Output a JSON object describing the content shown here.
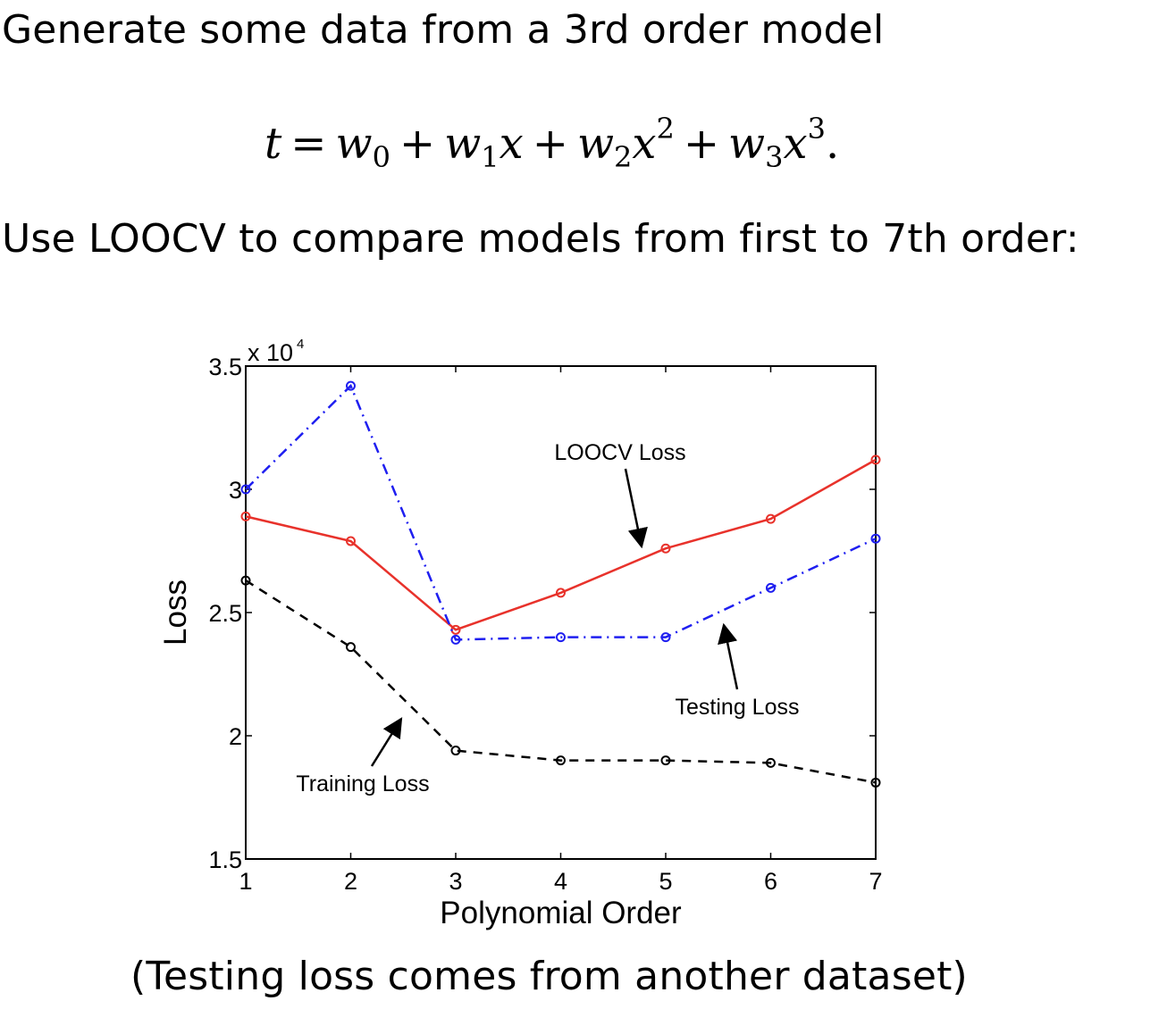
{
  "slide": {
    "intro": "Generate some data from a 3rd order model",
    "equation": {
      "lhs": "t",
      "eq": "=",
      "terms": [
        {
          "var": "w",
          "sub": "0",
          "x": "",
          "sup": ""
        },
        {
          "var": "w",
          "sub": "1",
          "x": "x",
          "sup": ""
        },
        {
          "var": "w",
          "sub": "2",
          "x": "x",
          "sup": "2"
        },
        {
          "var": "w",
          "sub": "3",
          "x": "x",
          "sup": "3"
        }
      ],
      "plus": "+",
      "end": "."
    },
    "instruction": "Use LOOCV to compare models from first to 7th order:",
    "caption": "(Testing loss comes from another dataset)"
  },
  "chart_data": {
    "type": "line",
    "xlabel": "Polynomial Order",
    "ylabel": "Loss",
    "y_scale_label": "x 10",
    "y_scale_exp": "4",
    "xlim": [
      1,
      7
    ],
    "ylim": [
      1.5,
      3.5
    ],
    "x": [
      1,
      2,
      3,
      4,
      5,
      6,
      7
    ],
    "xticks": [
      "1",
      "2",
      "3",
      "4",
      "5",
      "6",
      "7"
    ],
    "yticks": [
      {
        "value": 1.5,
        "label": "1.5"
      },
      {
        "value": 2,
        "label": "2"
      },
      {
        "value": 2.5,
        "label": "2.5"
      },
      {
        "value": 3,
        "label": "3"
      },
      {
        "value": 3.5,
        "label": "3.5"
      }
    ],
    "grid": false,
    "series": [
      {
        "key": "loocv",
        "name": "LOOCV Loss",
        "color": "#e8322b",
        "style": "solid",
        "values": [
          2.89,
          2.79,
          2.43,
          2.58,
          2.76,
          2.88,
          3.12
        ]
      },
      {
        "key": "testing",
        "name": "Testing Loss",
        "color": "#1f1ff0",
        "style": "dashdot",
        "values": [
          3.0,
          3.42,
          2.39,
          2.4,
          2.4,
          2.6,
          2.8
        ]
      },
      {
        "key": "training",
        "name": "Training Loss",
        "color": "#000000",
        "style": "dashed",
        "values": [
          2.63,
          2.36,
          1.94,
          1.9,
          1.9,
          1.89,
          1.81
        ]
      }
    ],
    "annotations": [
      {
        "series": "loocv",
        "text": "LOOCV Loss",
        "at": [
          5,
          2.8
        ]
      },
      {
        "series": "testing",
        "text": "Testing Loss",
        "at": [
          6,
          2.2
        ]
      },
      {
        "series": "training",
        "text": "Training Loss",
        "at": [
          2.5,
          1.9
        ]
      }
    ]
  }
}
